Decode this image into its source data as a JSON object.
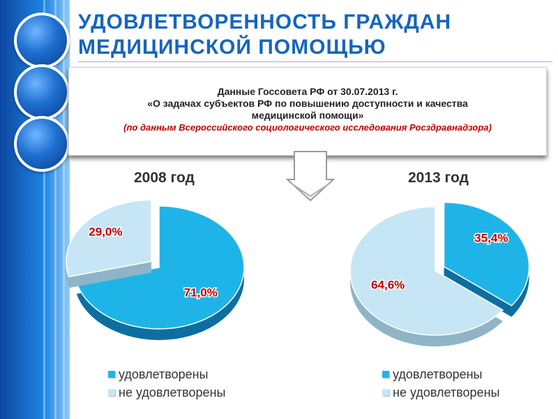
{
  "title_line1": "УДОВЛЕТВОРЕННОСТЬ   ГРАЖДАН",
  "title_line2": "МЕДИЦИНСКОЙ  ПОМОЩЬЮ",
  "source": {
    "line1": "Данные Госсовета РФ от 30.07.2013 г.",
    "line2": "«О задачах субъектов РФ по повышению доступности и качества",
    "line3": "медицинской помощи»",
    "line4": "(по данным Всероссийского социологического исследования Росздравнадзора)"
  },
  "colors": {
    "satisfied": "#1fb4e8",
    "not_satisfied": "#c6e6f6",
    "label": "#c00000",
    "title": "#1565c0"
  },
  "chart_data": [
    {
      "type": "pie",
      "title": "2008 год",
      "slices": [
        {
          "label": "удовлетворены",
          "value": 71.0,
          "text": "71,0%"
        },
        {
          "label": "не удовлетворены",
          "value": 29.0,
          "text": "29,0%"
        }
      ],
      "legend": [
        "удовлетворены",
        "не удовлетворены"
      ],
      "legend_position": "bottom"
    },
    {
      "type": "pie",
      "title": "2013 год",
      "slices": [
        {
          "label": "удовлетворены",
          "value": 35.4,
          "text": "35,4%"
        },
        {
          "label": "не удовлетворены",
          "value": 64.6,
          "text": "64,6%"
        }
      ],
      "legend": [
        "удовлетворены",
        "не удовлетворены"
      ],
      "legend_position": "bottom"
    }
  ]
}
